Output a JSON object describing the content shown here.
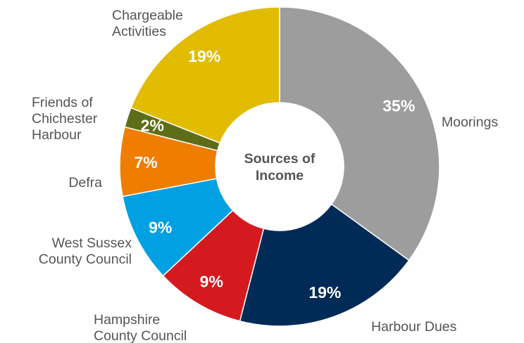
{
  "chart_data": {
    "type": "pie",
    "donut": true,
    "center_label": [
      "Sources of",
      "Income"
    ],
    "slices": [
      {
        "name": "Moorings",
        "value": 35,
        "label": "35%",
        "color": "#9d9d9d",
        "outer_label": [
          "Moorings"
        ]
      },
      {
        "name": "Harbour Dues",
        "value": 19,
        "label": "19%",
        "color": "#002b56",
        "outer_label": [
          "Harbour Dues"
        ]
      },
      {
        "name": "Hampshire County Council",
        "value": 9,
        "label": "9%",
        "color": "#d51a1f",
        "outer_label": [
          "Hampshire",
          "County Council"
        ]
      },
      {
        "name": "West Sussex County Council",
        "value": 9,
        "label": "9%",
        "color": "#00a0e2",
        "outer_label": [
          "West Sussex",
          "County Council"
        ]
      },
      {
        "name": "Defra",
        "value": 7,
        "label": "7%",
        "color": "#ee7d00",
        "outer_label": [
          "Defra"
        ]
      },
      {
        "name": "Friends of Chichester Harbour",
        "value": 2,
        "label": "2%",
        "color": "#5e6e18",
        "outer_label": [
          "Friends of",
          "Chichester",
          "Harbour"
        ]
      },
      {
        "name": "Chargeable Activities",
        "value": 19,
        "label": "19%",
        "color": "#e1bc00",
        "outer_label": [
          "Chargeable",
          "Activities"
        ]
      }
    ]
  }
}
